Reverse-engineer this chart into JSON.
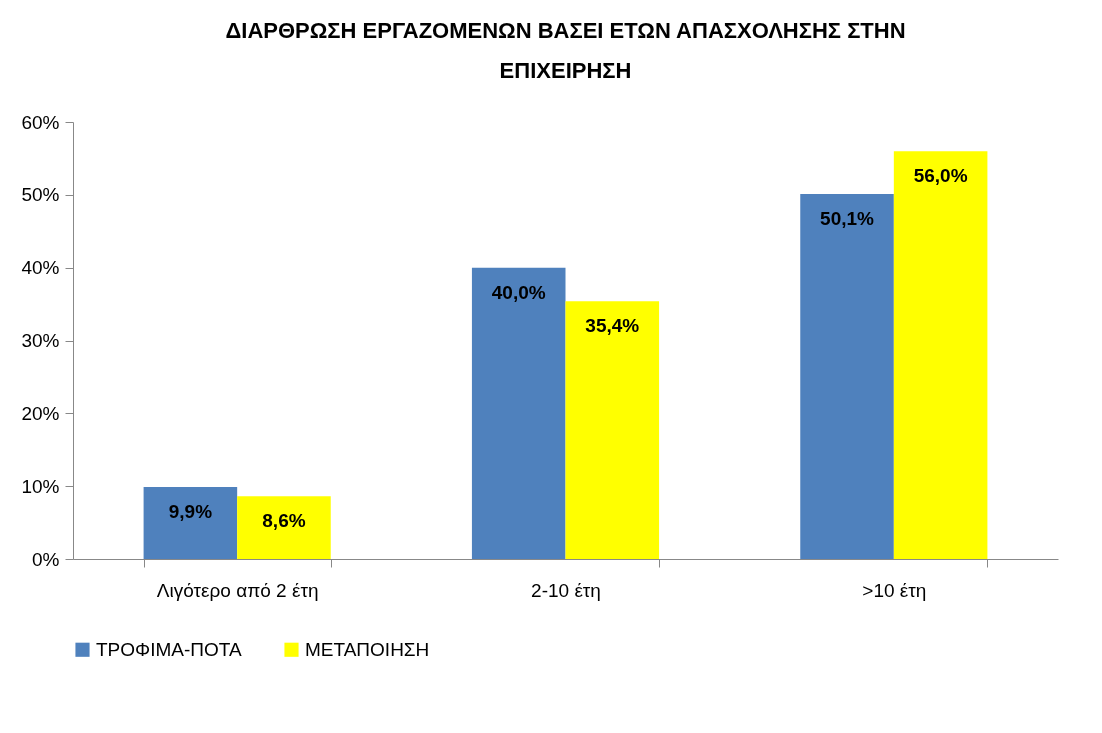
{
  "chart_data": {
    "type": "bar",
    "title": [
      "ΔΙΑΡΘΡΩΣΗ ΕΡΓΑΖΟΜΕΝΩΝ ΒΑΣΕΙ ΕΤΩΝ ΑΠΑΣΧΟΛΗΣΗΣ ΣΤΗΝ",
      "ΕΠΙΧΕΙΡΗΣΗ"
    ],
    "categories": [
      "Λιγότερο από 2 έτη",
      "2-10 έτη",
      ">10 έτη"
    ],
    "series": [
      {
        "name": "ΤΡΟΦΙΜΑ-ΠΟΤΑ",
        "color": "#4f81bd",
        "values": [
          9.9,
          40.0,
          50.1
        ],
        "value_labels": [
          "9,9%",
          "40,0%",
          "50,1%"
        ]
      },
      {
        "name": "ΜΕΤΑΠΟΙΗΣΗ",
        "color": "#ffff00",
        "values": [
          8.6,
          35.4,
          56.0
        ],
        "value_labels": [
          "8,6%",
          "35,4%",
          "56,0%"
        ]
      }
    ],
    "ylim": [
      0,
      60
    ],
    "yticks": [
      {
        "value": 0,
        "label": "0%"
      },
      {
        "value": 10,
        "label": "10%"
      },
      {
        "value": 20,
        "label": "20%"
      },
      {
        "value": 30,
        "label": "30%"
      },
      {
        "value": 40,
        "label": "40%"
      },
      {
        "value": 50,
        "label": "50%"
      },
      {
        "value": 60,
        "label": "60%"
      }
    ],
    "grid": false,
    "legend": "bottom"
  }
}
